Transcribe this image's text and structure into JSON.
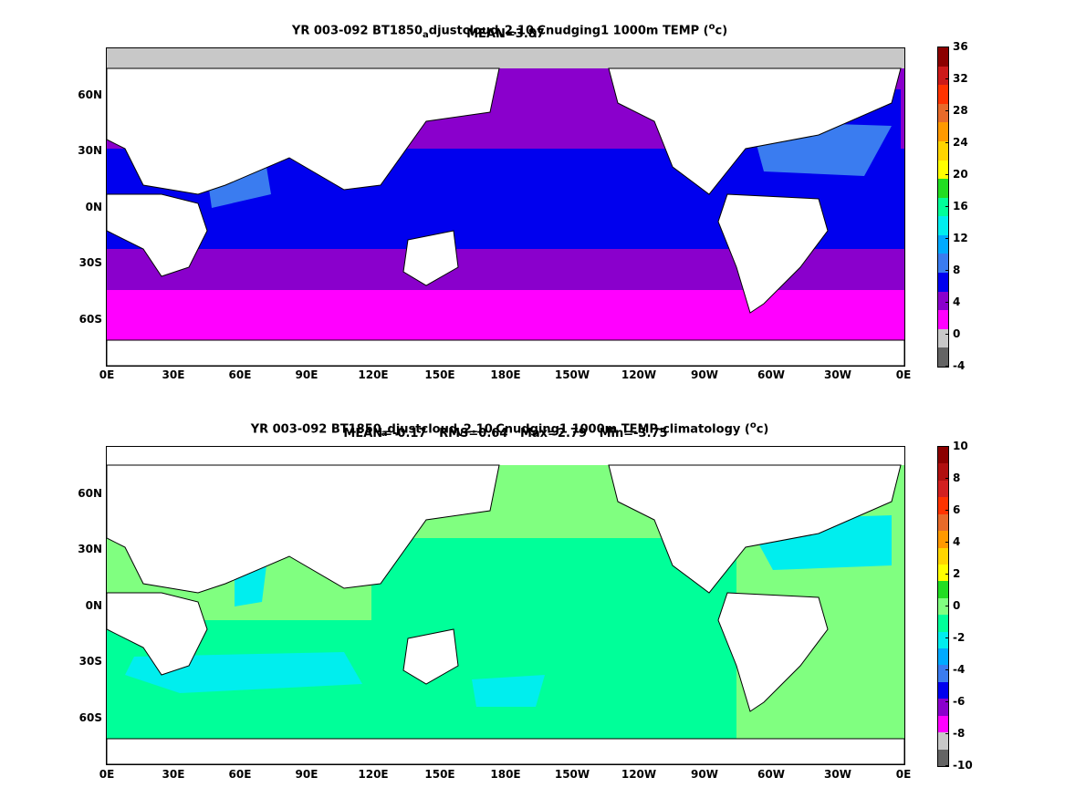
{
  "panels": [
    {
      "id": "top",
      "title_parts": [
        "YR 003-092 BT1850",
        "a",
        "djustcloud",
        "v",
        "2.10",
        "l",
        "Cnudging1 1000m TEMP (",
        "o",
        "c)"
      ],
      "stats": "MEAN=3.87",
      "colorbar": {
        "labels": [
          "36",
          "32",
          "28",
          "24",
          "20",
          "16",
          "12",
          "8",
          "4",
          "0",
          "-4"
        ],
        "colors": [
          "#8b0000",
          "#cc1a1a",
          "#ff3300",
          "#e86a2a",
          "#ff9900",
          "#ffd500",
          "#ffff00",
          "#22dd22",
          "#00ff99",
          "#00eeee",
          "#00aaff",
          "#3a7cf0",
          "#0000ee",
          "#8a00cc",
          "#ff00ff",
          "#c8c8c8",
          "#646464"
        ]
      }
    },
    {
      "id": "bottom",
      "title_parts": [
        "YR 003-092 BT1850",
        "a",
        "djustcloud",
        "v",
        "2.10",
        "l",
        "Cnudging1 1000m TEMP-climatology (",
        "o",
        "c)"
      ],
      "stats": "MEAN=-0.17   RMS=0.64   Max=2.79   Min=-3.75",
      "colorbar": {
        "labels": [
          "10",
          "8",
          "6",
          "4",
          "2",
          "0",
          "-2",
          "-4",
          "-6",
          "-8",
          "-10"
        ],
        "colors": [
          "#8b0000",
          "#b01010",
          "#d22020",
          "#ff3300",
          "#e86a2a",
          "#ff9900",
          "#ffd500",
          "#ffff00",
          "#22dd22",
          "#80ff80",
          "#00ff99",
          "#00eeee",
          "#00aaff",
          "#3a7cf0",
          "#0000ee",
          "#8a00cc",
          "#ff00ff",
          "#c8c8c8",
          "#646464"
        ]
      }
    }
  ],
  "x_ticks": [
    "0E",
    "30E",
    "60E",
    "90E",
    "120E",
    "150E",
    "180E",
    "150W",
    "120W",
    "90W",
    "60W",
    "30W",
    "0E"
  ],
  "y_ticks": [
    "60N",
    "30N",
    "0N",
    "30S",
    "60S"
  ]
}
